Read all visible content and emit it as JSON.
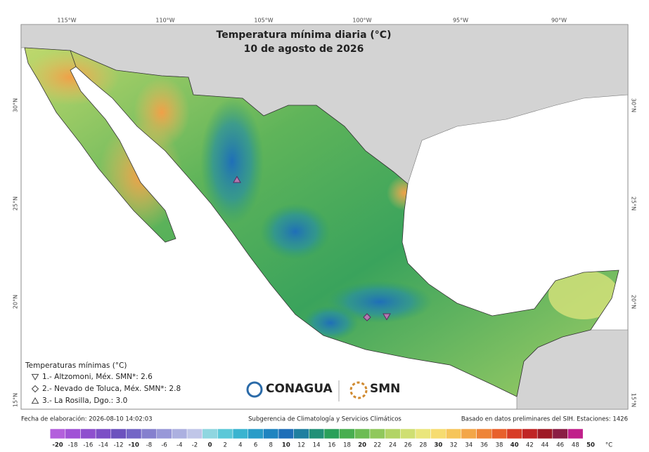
{
  "map": {
    "title": "Temperatura mínima diaria (°C)",
    "subtitle": "10 de agosto de 2026",
    "lon_labels": [
      "115°W",
      "110°W",
      "105°W",
      "100°W",
      "95°W",
      "90°W"
    ],
    "lat_labels": [
      "30°N",
      "25°N",
      "20°N",
      "15°N"
    ]
  },
  "legend": {
    "title": "Temperaturas mínimas (°C)",
    "stations": [
      {
        "marker": "down-triangle",
        "text": "1.- Altzomoni, Méx. SMN*: 2.6"
      },
      {
        "marker": "diamond",
        "text": "2.- Nevado de Toluca, Méx. SMN*: 2.8"
      },
      {
        "marker": "up-triangle",
        "text": "3.- La Rosilla, Dgo.: 3.0"
      }
    ]
  },
  "logos": {
    "conagua": "CONAGUA",
    "smn": "SMN"
  },
  "footer": {
    "date": "Fecha de elaboración: 2026-08-10 14:02:03",
    "center": "Subgerencia de Climatología y Servicios Climáticos",
    "right": "Basado en datos preliminares del SIH. Estaciones: 1426"
  },
  "colorbar": {
    "ticks": [
      -20,
      -18,
      -16,
      -14,
      -12,
      -10,
      -8,
      -6,
      -4,
      -2,
      0,
      2,
      4,
      6,
      8,
      10,
      12,
      14,
      16,
      18,
      20,
      22,
      24,
      26,
      28,
      30,
      32,
      34,
      36,
      38,
      40,
      42,
      44,
      46,
      48,
      50
    ],
    "colors": [
      "#b35fdc",
      "#a052d6",
      "#8e4fce",
      "#7c4fc6",
      "#6c52be",
      "#7366c6",
      "#8580ce",
      "#9898d8",
      "#acb0e0",
      "#c0c6e8",
      "#8fd6e0",
      "#5cc8d8",
      "#3ab4d0",
      "#2a9cc8",
      "#1f84c0",
      "#1e6eb8",
      "#1f7fa0",
      "#229078",
      "#2aa05a",
      "#48ae50",
      "#6cbc54",
      "#90c85c",
      "#b2d466",
      "#cfdf72",
      "#eae67c",
      "#f6dc70",
      "#f6c55a",
      "#f3a648",
      "#ee8438",
      "#e8602c",
      "#d83c26",
      "#c02424",
      "#9e1a26",
      "#8a1e44",
      "#c0208a"
    ],
    "unit": "°C"
  }
}
